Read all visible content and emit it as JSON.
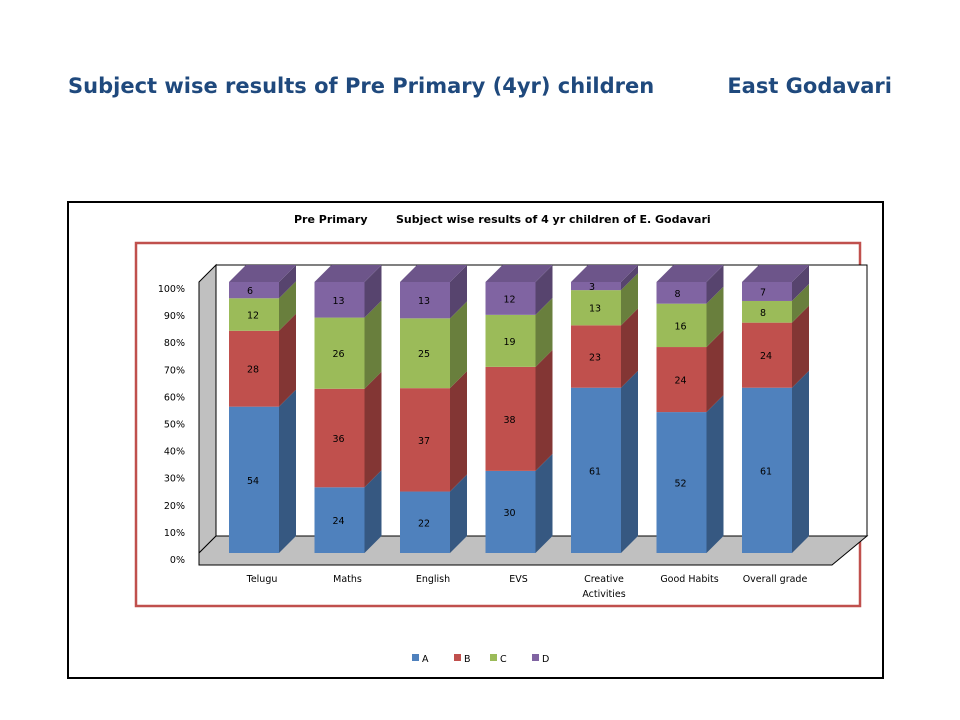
{
  "slide": {
    "title_part1": "Subject wise results of Pre Primary (4yr) children",
    "title_part2": "East Godavari"
  },
  "chart_data": {
    "type": "bar",
    "stacked": true,
    "normalized": true,
    "three_d": true,
    "title_left": "Pre Primary",
    "title_right": "Subject wise results of 4 yr children of  E. Godavari",
    "categories": [
      [
        "Telugu"
      ],
      [
        "Maths"
      ],
      [
        "English"
      ],
      [
        "EVS"
      ],
      [
        "Creative",
        "Activities"
      ],
      [
        "Good Habits"
      ],
      [
        "Overall grade"
      ]
    ],
    "yticks": [
      "0%",
      "10%",
      "20%",
      "30%",
      "40%",
      "50%",
      "60%",
      "70%",
      "80%",
      "90%",
      "100%"
    ],
    "ylim": [
      0,
      100
    ],
    "legend_position": "bottom",
    "series": [
      {
        "name": "A",
        "color": "#4f81bd",
        "values": [
          54,
          24,
          22,
          30,
          61,
          52,
          61
        ]
      },
      {
        "name": "B",
        "color": "#c0504d",
        "values": [
          28,
          36,
          37,
          38,
          23,
          24,
          24
        ]
      },
      {
        "name": "C",
        "color": "#9bbb59",
        "values": [
          12,
          26,
          25,
          19,
          13,
          16,
          8
        ]
      },
      {
        "name": "D",
        "color": "#8064a2",
        "values": [
          6,
          13,
          13,
          12,
          3,
          8,
          7
        ]
      }
    ]
  }
}
